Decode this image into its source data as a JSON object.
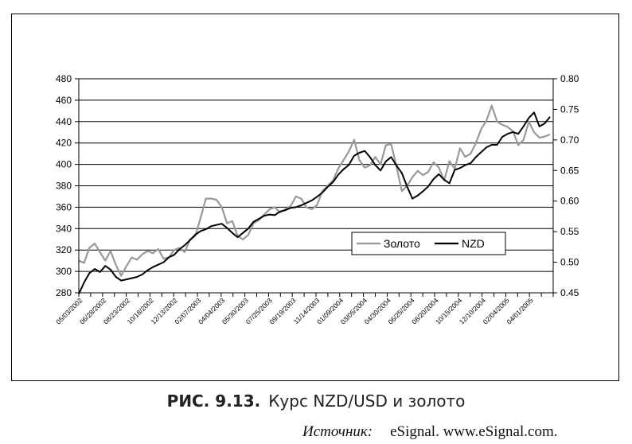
{
  "figure": {
    "number": "РИС. 9.13.",
    "title": "Курс NZD/USD и золото",
    "source_label": "Источник:",
    "source_text": "eSignal. www.eSignal.com."
  },
  "chart_data": {
    "type": "line",
    "title": "",
    "xlabel": "",
    "ylabel": "",
    "x_ticks": [
      "05/03/2002",
      "06/28/2002",
      "08/23/2002",
      "10/18/2002",
      "12/13/2002",
      "02/07/2003",
      "04/04/2003",
      "05/30/2003",
      "07/25/2003",
      "09/19/2003",
      "11/14/2003",
      "01/09/2004",
      "03/05/2004",
      "04/30/2004",
      "06/25/2004",
      "08/20/2004",
      "10/15/2004",
      "12/10/2004",
      "02/04/2005",
      "04/01/2005"
    ],
    "y_left": {
      "min": 280,
      "max": 480,
      "step": 20,
      "ticks": [
        "280",
        "300",
        "320",
        "340",
        "360",
        "380",
        "400",
        "420",
        "440",
        "460",
        "480"
      ]
    },
    "y_right": {
      "min": 0.45,
      "max": 0.8,
      "step": 0.05,
      "ticks": [
        "0.45",
        "0.50",
        "0.55",
        "0.60",
        "0.65",
        "0.70",
        "0.75",
        "0.80"
      ]
    },
    "grid": true,
    "legend_position": "center-right",
    "series": [
      {
        "name": "Золото",
        "axis": "left",
        "color": "#999999",
        "values": [
          310,
          308,
          322,
          326,
          318,
          310,
          319,
          306,
          296,
          305,
          313,
          311,
          316,
          319,
          317,
          321,
          312,
          313,
          320,
          322,
          318,
          330,
          333,
          350,
          368,
          368,
          367,
          360,
          345,
          347,
          333,
          330,
          334,
          345,
          348,
          353,
          358,
          360,
          355,
          358,
          361,
          370,
          368,
          360,
          358,
          362,
          375,
          380,
          385,
          396,
          404,
          412,
          423,
          404,
          397,
          399,
          407,
          400,
          418,
          419,
          398,
          375,
          380,
          388,
          394,
          390,
          393,
          402,
          397,
          385,
          403,
          396,
          415,
          407,
          410,
          420,
          433,
          441,
          455,
          440,
          437,
          435,
          431,
          418,
          423,
          440,
          430,
          425,
          426,
          428
        ]
      },
      {
        "name": "NZD",
        "axis": "right",
        "color": "#000000",
        "values": [
          0.448,
          0.467,
          0.482,
          0.489,
          0.484,
          0.494,
          0.488,
          0.476,
          0.47,
          0.472,
          0.474,
          0.476,
          0.48,
          0.487,
          0.492,
          0.496,
          0.5,
          0.508,
          0.512,
          0.521,
          0.528,
          0.536,
          0.545,
          0.551,
          0.554,
          0.559,
          0.561,
          0.563,
          0.556,
          0.548,
          0.541,
          0.548,
          0.555,
          0.566,
          0.571,
          0.576,
          0.578,
          0.577,
          0.583,
          0.585,
          0.589,
          0.59,
          0.593,
          0.597,
          0.601,
          0.607,
          0.614,
          0.623,
          0.631,
          0.643,
          0.652,
          0.659,
          0.674,
          0.679,
          0.682,
          0.672,
          0.659,
          0.65,
          0.665,
          0.672,
          0.658,
          0.646,
          0.624,
          0.604,
          0.609,
          0.616,
          0.624,
          0.636,
          0.644,
          0.635,
          0.629,
          0.651,
          0.654,
          0.659,
          0.662,
          0.672,
          0.68,
          0.688,
          0.692,
          0.692,
          0.705,
          0.71,
          0.713,
          0.71,
          0.722,
          0.736,
          0.745,
          0.722,
          0.727,
          0.738
        ]
      }
    ]
  }
}
